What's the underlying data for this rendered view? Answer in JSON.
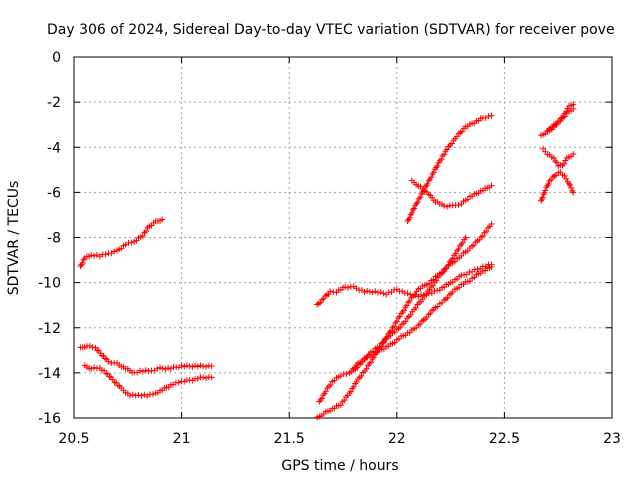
{
  "chart_data": {
    "type": "scatter",
    "title": "Day 306 of 2024, Sidereal Day-to-day VTEC variation (SDTVAR) for receiver pove",
    "xlabel": "GPS time / hours",
    "ylabel": "SDTVAR / TECUs",
    "xlim": [
      20.5,
      23
    ],
    "ylim": [
      -16,
      0
    ],
    "xticks": [
      "20.5",
      "21",
      "21.5",
      "22",
      "22.5",
      "23"
    ],
    "yticks": [
      "0",
      "-2",
      "-4",
      "-6",
      "-8",
      "-10",
      "-12",
      "-14",
      "-16"
    ],
    "grid": true,
    "legend": "none",
    "marker": "+",
    "color": "#ff0000",
    "series": [
      {
        "x": [
          20.53,
          20.55,
          20.58,
          20.62,
          20.66,
          20.7,
          20.74,
          20.78,
          20.82,
          20.85,
          20.88,
          20.91
        ],
        "y": [
          -9.3,
          -8.9,
          -8.8,
          -8.8,
          -8.7,
          -8.6,
          -8.3,
          -8.2,
          -7.9,
          -7.5,
          -7.3,
          -7.2
        ]
      },
      {
        "x": [
          20.53,
          20.56,
          20.6,
          20.63,
          20.66,
          20.7,
          20.74,
          20.78,
          20.82,
          20.86,
          20.9,
          20.95,
          21.0,
          21.05,
          21.1,
          21.14
        ],
        "y": [
          -12.9,
          -12.8,
          -12.9,
          -13.2,
          -13.5,
          -13.6,
          -13.8,
          -14.0,
          -13.9,
          -13.9,
          -13.8,
          -13.8,
          -13.7,
          -13.7,
          -13.7,
          -13.7
        ]
      },
      {
        "x": [
          20.55,
          20.58,
          20.62,
          20.65,
          20.68,
          20.72,
          20.76,
          20.8,
          20.84,
          20.88,
          20.92,
          20.96,
          21.0,
          21.05,
          21.1,
          21.14
        ],
        "y": [
          -13.7,
          -13.8,
          -13.8,
          -14.0,
          -14.3,
          -14.7,
          -15.0,
          -15.0,
          -15.0,
          -14.9,
          -14.7,
          -14.5,
          -14.4,
          -14.3,
          -14.2,
          -14.2
        ]
      },
      {
        "x": [
          21.63,
          21.66,
          21.69,
          21.72,
          21.76,
          21.8,
          21.85,
          21.9,
          21.95,
          22.0,
          22.05,
          22.1,
          22.15,
          22.2,
          22.25,
          22.3,
          22.35,
          22.4,
          22.44
        ],
        "y": [
          -11.0,
          -10.7,
          -10.4,
          -10.4,
          -10.2,
          -10.2,
          -10.4,
          -10.4,
          -10.5,
          -10.3,
          -10.5,
          -10.6,
          -10.5,
          -10.3,
          -10.0,
          -9.7,
          -9.5,
          -9.3,
          -9.2
        ]
      },
      {
        "x": [
          21.63,
          21.66,
          21.7,
          21.74,
          21.78,
          21.82,
          21.86,
          21.9,
          21.94,
          21.98,
          22.02,
          22.06,
          22.1,
          22.15,
          22.2,
          22.25,
          22.3,
          22.35,
          22.4,
          22.44
        ],
        "y": [
          -16.0,
          -15.8,
          -15.6,
          -15.4,
          -14.9,
          -14.3,
          -13.8,
          -13.2,
          -12.6,
          -12.0,
          -11.4,
          -10.8,
          -10.3,
          -10.0,
          -9.6,
          -9.2,
          -8.8,
          -8.4,
          -7.9,
          -7.4
        ]
      },
      {
        "x": [
          21.64,
          21.67,
          21.7,
          21.74,
          21.78,
          21.82,
          21.86,
          21.9,
          21.94,
          21.98,
          22.02,
          22.06,
          22.1,
          22.14,
          22.18,
          22.22,
          22.26,
          22.3,
          22.34,
          22.38,
          22.42,
          22.44
        ],
        "y": [
          -15.3,
          -14.8,
          -14.4,
          -14.1,
          -14.0,
          -13.6,
          -13.3,
          -13.1,
          -12.9,
          -12.7,
          -12.4,
          -12.2,
          -11.9,
          -11.5,
          -11.1,
          -10.8,
          -10.4,
          -10.1,
          -9.9,
          -9.6,
          -9.4,
          -9.3
        ]
      },
      {
        "x": [
          21.8,
          21.84,
          21.88,
          21.92,
          21.96,
          22.0,
          22.04,
          22.08,
          22.12,
          22.16,
          22.2,
          22.24,
          22.28,
          22.32
        ],
        "y": [
          -13.9,
          -13.5,
          -13.1,
          -12.8,
          -12.4,
          -12.1,
          -11.7,
          -11.2,
          -10.7,
          -10.2,
          -9.7,
          -9.2,
          -8.6,
          -8.0
        ]
      },
      {
        "x": [
          22.05,
          22.08,
          22.12,
          22.16,
          22.2,
          22.24,
          22.28,
          22.32,
          22.36,
          22.4,
          22.44
        ],
        "y": [
          -7.3,
          -6.7,
          -6.0,
          -5.3,
          -4.6,
          -4.0,
          -3.5,
          -3.1,
          -2.9,
          -2.7,
          -2.6
        ]
      },
      {
        "x": [
          22.07,
          22.1,
          22.14,
          22.18,
          22.22,
          22.26,
          22.3,
          22.34,
          22.38,
          22.42,
          22.44
        ],
        "y": [
          -5.5,
          -5.7,
          -6.0,
          -6.4,
          -6.6,
          -6.6,
          -6.5,
          -6.2,
          -6.0,
          -5.8,
          -5.7
        ]
      },
      {
        "x": [
          22.67,
          22.7,
          22.73,
          22.76,
          22.78,
          22.8,
          22.82
        ],
        "y": [
          -3.5,
          -3.3,
          -3.0,
          -2.8,
          -2.5,
          -2.2,
          -2.1
        ]
      },
      {
        "x": [
          22.68,
          22.7,
          22.73,
          22.75,
          22.77,
          22.79,
          22.82
        ],
        "y": [
          -4.1,
          -4.3,
          -4.5,
          -4.8,
          -4.8,
          -4.5,
          -4.3
        ]
      },
      {
        "x": [
          22.67,
          22.69,
          22.71,
          22.74,
          22.76,
          22.78,
          22.8,
          22.82
        ],
        "y": [
          -6.4,
          -5.9,
          -5.5,
          -5.2,
          -5.1,
          -5.3,
          -5.6,
          -6.0
        ]
      },
      {
        "x": [
          22.7,
          22.72,
          22.75,
          22.78,
          22.8,
          22.82
        ],
        "y": [
          -3.3,
          -3.2,
          -2.9,
          -2.6,
          -2.4,
          -2.3
        ]
      }
    ]
  }
}
